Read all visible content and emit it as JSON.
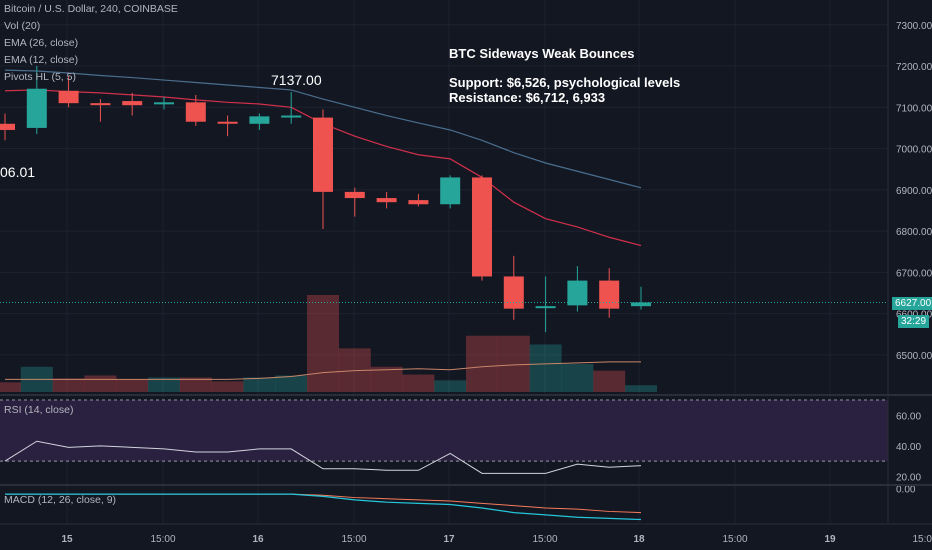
{
  "header": {
    "symbol": "Bitcoin / U.S. Dollar, 240, COINBASE",
    "vol": "Vol (20)",
    "ema26": "EMA (26, close)",
    "ema12": "EMA (12, close)",
    "pivots": "Pivots HL (5, 5)"
  },
  "annotation": {
    "title": "BTC Sideways Weak Bounces",
    "support": "Support: $6,526, psychological levels",
    "resistance": "Resistance: $6,712, 6,933"
  },
  "pivot_labels": {
    "high": "7137.00",
    "low": "06.01"
  },
  "price_tags": {
    "last": "6627.00",
    "countdown": "32:29"
  },
  "rsi_panel": {
    "label": "RSI (14, close)"
  },
  "macd_panel": {
    "label": "MACD (12, 26, close, 9)"
  },
  "colors": {
    "background": "#131722",
    "up": "#26a69a",
    "down": "#ef5350",
    "ema26": "#4a6e8e",
    "ema12": "#d2304b",
    "rsi_band": "#2a2040",
    "text": "#b2b5be"
  },
  "chart_data": {
    "type": "candlestick",
    "x_ticks": [
      "15",
      "15:00",
      "16",
      "15:00",
      "17",
      "15:00",
      "18",
      "15:00",
      "19",
      "15:00"
    ],
    "price_axis": {
      "ticks": [
        6500,
        6600,
        6700,
        6800,
        6900,
        7000,
        7100,
        7200,
        7300
      ],
      "ylim": [
        6410,
        7360
      ]
    },
    "candles": [
      {
        "o": 7060,
        "h": 7085,
        "l": 7020,
        "c": 7045
      },
      {
        "o": 7050,
        "h": 7200,
        "l": 7035,
        "c": 7145
      },
      {
        "o": 7140,
        "h": 7175,
        "l": 7100,
        "c": 7110
      },
      {
        "o": 7110,
        "h": 7120,
        "l": 7065,
        "c": 7108
      },
      {
        "o": 7115,
        "h": 7135,
        "l": 7080,
        "c": 7105
      },
      {
        "o": 7110,
        "h": 7125,
        "l": 7095,
        "c": 7112
      },
      {
        "o": 7112,
        "h": 7130,
        "l": 7055,
        "c": 7065
      },
      {
        "o": 7065,
        "h": 7080,
        "l": 7030,
        "c": 7062
      },
      {
        "o": 7060,
        "h": 7085,
        "l": 7045,
        "c": 7078
      },
      {
        "o": 7078,
        "h": 7137,
        "l": 7060,
        "c": 7080
      },
      {
        "o": 7075,
        "h": 7095,
        "l": 6805,
        "c": 6895
      },
      {
        "o": 6895,
        "h": 6905,
        "l": 6835,
        "c": 6880
      },
      {
        "o": 6880,
        "h": 6895,
        "l": 6855,
        "c": 6870
      },
      {
        "o": 6875,
        "h": 6890,
        "l": 6860,
        "c": 6865
      },
      {
        "o": 6865,
        "h": 6935,
        "l": 6855,
        "c": 6930
      },
      {
        "o": 6930,
        "h": 6935,
        "l": 6680,
        "c": 6690
      },
      {
        "o": 6690,
        "h": 6740,
        "l": 6585,
        "c": 6612
      },
      {
        "o": 6615,
        "h": 6690,
        "l": 6555,
        "c": 6618
      },
      {
        "o": 6620,
        "h": 6715,
        "l": 6605,
        "c": 6680
      },
      {
        "o": 6680,
        "h": 6710,
        "l": 6590,
        "c": 6612
      },
      {
        "o": 6618,
        "h": 6665,
        "l": 6610,
        "c": 6627
      }
    ],
    "volume": [
      10,
      26,
      14,
      17,
      13,
      15,
      15,
      11,
      15,
      17,
      100,
      45,
      26,
      18,
      12,
      58,
      58,
      49,
      29,
      22,
      7
    ],
    "volume_ma": [
      13,
      13,
      13,
      13,
      13,
      13,
      13,
      13,
      14,
      16,
      20,
      22,
      23,
      24,
      23,
      26,
      28,
      29,
      30,
      31,
      31
    ],
    "ema26": [
      7190,
      7188,
      7183,
      7177,
      7172,
      7166,
      7160,
      7154,
      7148,
      7142,
      7120,
      7100,
      7080,
      7062,
      7045,
      7020,
      6990,
      6965,
      6945,
      6925,
      6905
    ],
    "ema12": [
      7140,
      7142,
      7138,
      7135,
      7130,
      7125,
      7118,
      7112,
      7108,
      7100,
      7060,
      7030,
      7005,
      6985,
      6975,
      6930,
      6870,
      6830,
      6810,
      6785,
      6765
    ],
    "rsi": {
      "ticks": [
        20,
        40,
        60
      ],
      "ylim": [
        15,
        72
      ],
      "bands": [
        30,
        70
      ],
      "values": [
        30,
        43,
        39,
        40,
        39,
        38,
        36,
        36,
        38,
        38,
        25,
        25,
        24,
        24,
        35,
        22,
        22,
        22,
        28,
        26,
        27
      ]
    },
    "macd": {
      "ticks": [
        0.0
      ],
      "ylim": [
        -30,
        2
      ],
      "macd": [
        -5,
        -5,
        -5,
        -5,
        -5,
        -5,
        -5,
        -5,
        -5,
        -5,
        -7,
        -10,
        -12,
        -13,
        -14,
        -17,
        -21,
        -23,
        -25,
        -26,
        -27
      ],
      "signal": [
        -5,
        -5,
        -5,
        -5,
        -5,
        -5,
        -5,
        -5,
        -5,
        -5,
        -6,
        -8,
        -9,
        -10,
        -11,
        -13,
        -15,
        -17,
        -18,
        -20,
        -21
      ]
    }
  }
}
